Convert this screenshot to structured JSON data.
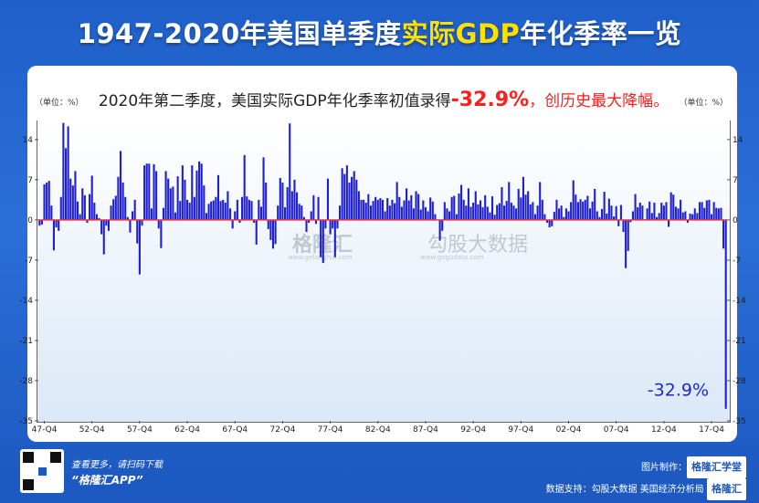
{
  "header": {
    "title_pre": "1947-2020年美国单季度",
    "title_hl": "实际GDP",
    "title_post": "年化季率一览"
  },
  "subtitle": {
    "text": "2020年第二季度，美国实际GDP年化季率初值录得",
    "value": "-32.9%",
    "suffix": "，创历史最大降幅。"
  },
  "units": {
    "left": "（单位：%）",
    "right": "（单位：%）"
  },
  "watermark": {
    "brand": "格隆汇",
    "brand_url": "www.gelonghui.com",
    "data_brand": "勾股大数据",
    "data_url": "www.gogudata.com"
  },
  "footer": {
    "line1": "查看更多，请扫码下载",
    "line2": "“格隆汇APP”",
    "made_by_label": "图片制作：",
    "made_by": "格隆汇学堂",
    "data_source_label": "数据支持：",
    "data_source": "勾股大数据 美国经济分析局",
    "logo": "格隆汇"
  },
  "colors": {
    "bar": "#1e1ed2",
    "zero_line": "#ff2b2b",
    "background": "#1f5fc9",
    "highlight": "#ffe100",
    "accent_red": "#ff1e1e"
  },
  "chart_data": {
    "type": "bar",
    "title": "2020年第二季度，美国实际GDP年化季率初值录得-32.9%，创历史最大降幅。",
    "ylim": [
      -35,
      17
    ],
    "yticks": [
      14,
      7,
      0,
      -7,
      -14,
      -21,
      -28,
      -35
    ],
    "xtick_labels": [
      "47-Q4",
      "52-Q4",
      "57-Q4",
      "62-Q4",
      "67-Q4",
      "72-Q4",
      "77-Q4",
      "82-Q4",
      "87-Q4",
      "92-Q4",
      "97-Q4",
      "02-Q4",
      "07-Q4",
      "12-Q4",
      "17-Q4"
    ],
    "annotation": "-32.9%",
    "x_start": "1947-Q2",
    "x_end": "2020-Q2",
    "values": [
      -1.0,
      -0.8,
      6.2,
      6.5,
      6.8,
      2.5,
      -5.3,
      -1.3,
      -1.9,
      4.0,
      16.9,
      12.5,
      16.3,
      7.2,
      6.0,
      8.5,
      3.2,
      1.0,
      5.5,
      4.3,
      -0.5,
      4.5,
      7.7,
      3.0,
      1.0,
      0.3,
      -2.5,
      -6.0,
      -1.0,
      -1.9,
      2.5,
      3.6,
      4.2,
      7.5,
      12.0,
      6.5,
      4.0,
      0.5,
      -2.2,
      1.5,
      3.5,
      -4.1,
      -9.5,
      -1.0,
      9.5,
      9.8,
      9.8,
      2.0,
      9.7,
      8.5,
      -1.5,
      -4.9,
      2.1,
      8.5,
      7.2,
      5.5,
      5.8,
      1.3,
      7.6,
      3.3,
      9.5,
      7.0,
      3.5,
      3.0,
      9.5,
      4.0,
      8.6,
      10.2,
      9.8,
      6.0,
      1.2,
      2.8,
      3.2,
      3.4,
      4.0,
      7.8,
      3.3,
      3.5,
      3.0,
      5.0,
      2.0,
      -1.5,
      1.5,
      3.5,
      -0.5,
      4.0,
      11.3,
      4.1,
      3.5,
      3.3,
      -0.5,
      -4.3,
      3.5,
      2.3,
      10.9,
      6.5,
      -1.6,
      -3.5,
      -5.0,
      -4.2,
      2.5,
      7.3,
      6.5,
      2.2,
      5.7,
      16.8,
      5.0,
      7.0,
      4.8,
      2.8,
      2.5,
      0.5,
      -2.1,
      -0.5,
      1.5,
      4.3,
      -0.7,
      4.0,
      -6.5,
      -7.5,
      -1.5,
      7.2,
      -2.5,
      -1.5,
      -6.5,
      -1.5,
      2.5,
      9.0,
      8.0,
      9.5,
      6.5,
      7.5,
      8.5,
      7.0,
      5.0,
      3.5,
      3.5,
      3.0,
      4.5,
      2.5,
      3.3,
      4.0,
      3.5,
      3.8,
      3.5,
      1.5,
      3.8,
      2.5,
      3.5,
      2.9,
      6.6,
      4.0,
      2.3,
      3.4,
      5.5,
      3.4,
      4.3,
      2.0,
      5.0,
      4.5,
      1.8,
      3.4,
      2.2,
      1.5,
      3.9,
      3.2,
      1.0,
      0.0,
      -3.6,
      -1.9,
      3.1,
      2.0,
      1.5,
      4.0,
      4.2,
      1.0,
      4.6,
      6.1,
      3.5,
      2.5,
      5.5,
      2.3,
      3.0,
      5.0,
      2.7,
      3.4,
      2.2,
      4.3,
      2.3,
      1.3,
      4.1,
      0.9,
      2.6,
      2.9,
      5.7,
      2.5,
      3.3,
      6.6,
      3.0,
      2.5,
      2.0,
      5.4,
      3.9,
      7.5,
      4.4,
      5.0,
      2.7,
      3.1,
      1.0,
      2.5,
      6.6,
      3.5,
      1.0,
      -0.5,
      -1.3,
      -1.1,
      1.4,
      3.5,
      2.0,
      2.5,
      0.5,
      2.0,
      1.5,
      3.1,
      6.9,
      4.4,
      3.1,
      3.6,
      3.2,
      3.5,
      4.2,
      2.0,
      3.2,
      5.4,
      1.5,
      0.5,
      1.9,
      4.9,
      1.1,
      3.7,
      2.5,
      0.6,
      2.4,
      -1.1,
      2.6,
      -2.1,
      -8.4,
      -5.4,
      -0.4,
      1.5,
      4.5,
      2.2,
      3.0,
      2.5,
      0.1,
      2.0,
      3.2,
      1.2,
      3.0,
      0.5,
      1.2,
      3.0,
      2.5,
      3.1,
      -1.2,
      4.8,
      4.4,
      2.3,
      2.0,
      3.5,
      1.3,
      1.5,
      -0.5,
      1.1,
      1.0,
      2.0,
      1.2,
      3.1,
      3.1,
      2.1,
      3.4,
      3.5,
      1.0,
      3.1,
      2.1,
      2.0,
      2.1,
      -5.0,
      -32.9
    ]
  }
}
